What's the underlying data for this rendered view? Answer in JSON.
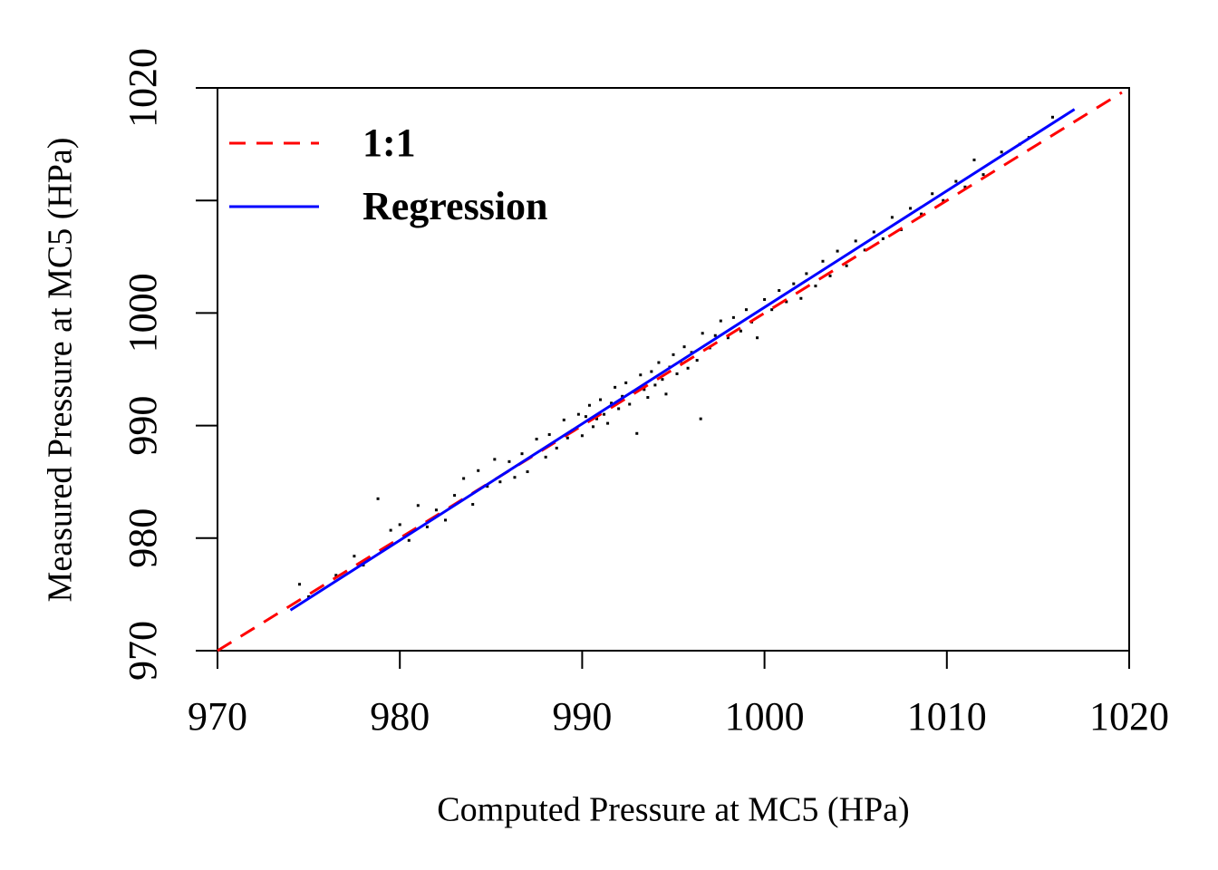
{
  "chart_data": {
    "type": "scatter",
    "xlabel": "Computed Pressure at MC5 (HPa)",
    "ylabel": "Measured Pressure at MC5 (HPa)",
    "xlim": [
      970,
      1020
    ],
    "ylim": [
      970,
      1020
    ],
    "xticks": [
      970,
      980,
      990,
      1000,
      1010,
      1020
    ],
    "yticks": [
      970,
      980,
      990,
      1000,
      {
        "value": 1010,
        "label": null
      },
      1020
    ],
    "legend": "top-left",
    "points": {
      "color": "#000000",
      "x": [
        974.5,
        975.0,
        976.5,
        977.5,
        978.0,
        978.8,
        979.5,
        980.0,
        980.5,
        981.0,
        981.5,
        982.0,
        982.5,
        983.0,
        983.5,
        984.0,
        984.3,
        984.8,
        985.2,
        985.5,
        986.0,
        986.3,
        986.7,
        987.0,
        987.5,
        988.0,
        988.2,
        988.6,
        989.0,
        989.2,
        989.5,
        989.8,
        990.0,
        990.2,
        990.4,
        990.6,
        990.8,
        991.0,
        991.2,
        991.4,
        991.6,
        991.8,
        992.0,
        992.2,
        992.4,
        992.6,
        992.8,
        993.0,
        993.2,
        993.4,
        993.6,
        993.8,
        994.0,
        994.2,
        994.4,
        994.6,
        994.8,
        995.0,
        995.2,
        995.4,
        995.6,
        995.8,
        996.0,
        996.3,
        996.5,
        996.6,
        997.0,
        997.3,
        997.6,
        998.0,
        998.3,
        998.7,
        999.0,
        999.3,
        999.6,
        1000.0,
        1000.4,
        1000.8,
        1001.2,
        1001.6,
        1002.0,
        1002.3,
        1002.8,
        1003.2,
        1003.6,
        1004.0,
        1004.5,
        1005.0,
        1005.5,
        1006.0,
        1006.5,
        1007.0,
        1007.5,
        1008.0,
        1008.6,
        1009.2,
        1009.8,
        1010.5,
        1011.0,
        1011.5,
        1012.0,
        1013.0,
        1014.0,
        1014.5,
        1015.8
      ],
      "values": [
        975.9,
        974.8,
        976.7,
        978.4,
        977.6,
        983.5,
        980.7,
        981.2,
        979.8,
        982.9,
        981.0,
        982.5,
        981.6,
        983.8,
        985.3,
        983.0,
        986.0,
        984.6,
        987.0,
        985.0,
        986.8,
        985.4,
        987.5,
        985.9,
        988.8,
        987.2,
        989.2,
        988.0,
        990.5,
        988.9,
        989.6,
        991.0,
        989.1,
        990.8,
        991.8,
        989.9,
        990.6,
        992.3,
        991.0,
        990.2,
        992.0,
        993.4,
        991.5,
        992.6,
        993.8,
        991.9,
        993.0,
        989.3,
        994.5,
        993.2,
        992.5,
        994.8,
        993.6,
        995.6,
        994.1,
        992.8,
        995.2,
        996.3,
        994.6,
        995.7,
        997.0,
        995.1,
        996.5,
        995.8,
        990.6,
        998.2,
        996.9,
        998.0,
        999.3,
        997.8,
        999.6,
        998.4,
        1000.3,
        999.2,
        997.8,
        1001.2,
        1000.3,
        1002.0,
        1001.0,
        1002.6,
        1001.3,
        1003.5,
        1002.4,
        1004.6,
        1003.3,
        1005.5,
        1004.2,
        1006.4,
        1005.6,
        1007.2,
        1006.6,
        1008.5,
        1007.4,
        1009.3,
        1008.8,
        1010.6,
        1010.0,
        1011.7,
        1011.2,
        1013.6,
        1012.3,
        1014.3,
        1015.0,
        1015.6,
        1017.4
      ]
    },
    "lines": [
      {
        "name": "1:1",
        "color": "#ff0000",
        "dash": true,
        "x": [
          970,
          1019.6
        ],
        "values": [
          970,
          1019.6
        ]
      },
      {
        "name": "Regression",
        "color": "#0000ff",
        "dash": false,
        "x": [
          974,
          1017
        ],
        "values": [
          973.6,
          1018.1
        ]
      }
    ]
  }
}
